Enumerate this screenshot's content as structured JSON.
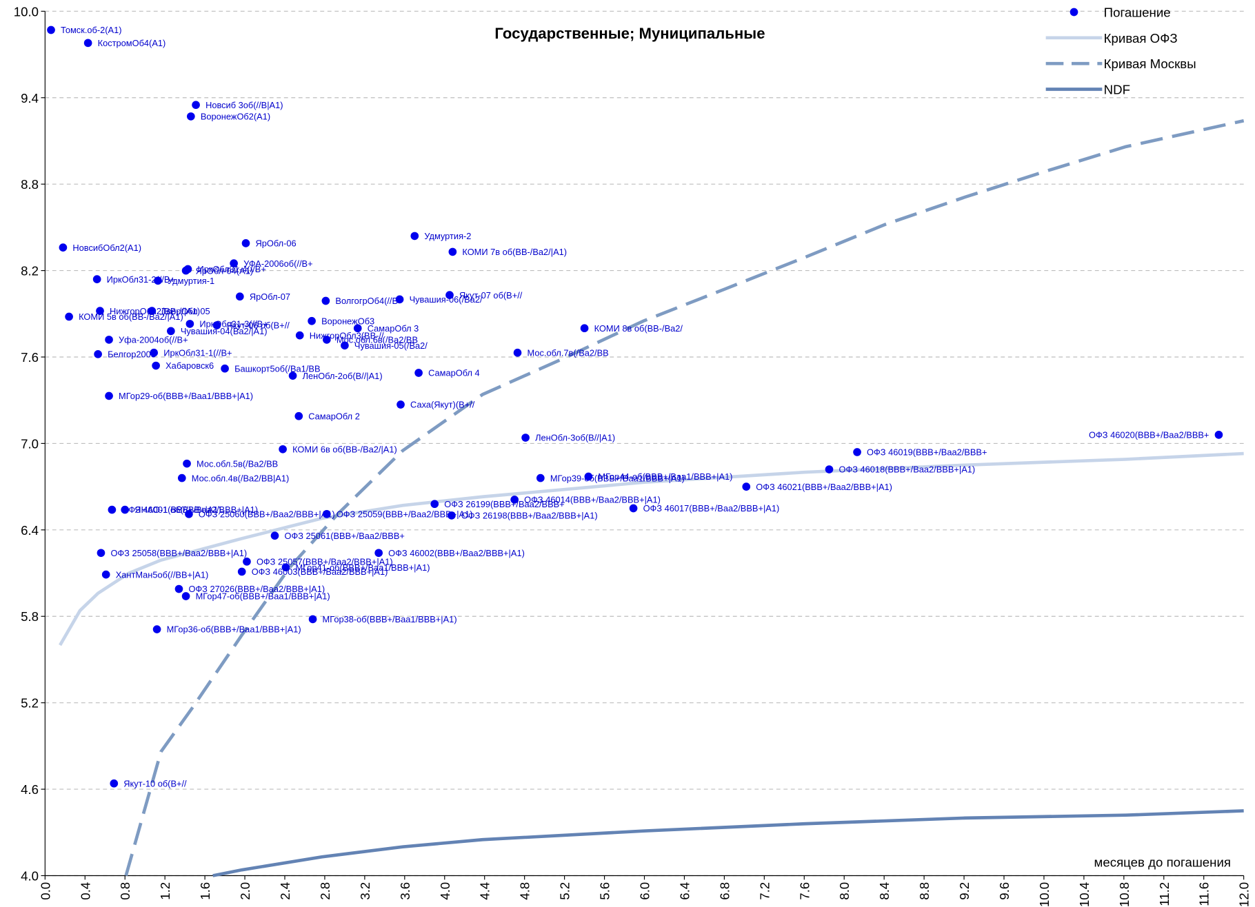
{
  "chart_data": {
    "type": "scatter",
    "title": "Государственные; Муниципальные",
    "xlabel": "месяцев до погашения",
    "xlim": [
      0,
      12
    ],
    "ylim": [
      4,
      10
    ],
    "xticks": [
      {
        "value": 0,
        "label": "0.0"
      },
      0.4,
      0.8,
      1.2,
      1.6,
      {
        "value": 2,
        "label": "2.0"
      },
      2.4,
      2.8,
      3.2,
      3.6,
      {
        "value": 4,
        "label": "4.0"
      },
      4.4,
      4.8,
      5.2,
      5.6,
      {
        "value": 6,
        "label": "6.0"
      },
      6.4,
      6.8,
      7.2,
      7.6,
      {
        "value": 8,
        "label": "8.0"
      },
      8.4,
      8.8,
      9.2,
      9.6,
      {
        "value": 10,
        "label": "10.0"
      },
      10.4,
      10.8,
      11.2,
      11.6,
      {
        "value": 12,
        "label": "12.0"
      }
    ],
    "yticks": [
      {
        "value": 4,
        "label": "4.0"
      },
      4.6,
      5.2,
      5.8,
      6.4,
      {
        "value": 7,
        "label": "7.0"
      },
      7.6,
      8.2,
      8.8,
      9.4,
      {
        "value": 10,
        "label": "10.0"
      }
    ],
    "grid": true,
    "legend": "upper right",
    "series": [
      {
        "name": "Погашение",
        "type": "scatter",
        "color": "#0000ee",
        "labels": [
          "Томск.об-2(А1)",
          "КостромОб4(А1)",
          "Новсиб 3об(//В|А1)",
          "ВоронежОб2(А1)",
          "НовсибОбл2(А1)",
          "ЯрОбл-06",
          "Удмуртия-2",
          "КОМИ 7в об(ВВ-/Ва2/|А1)",
          "УФА-2006об(//В+",
          "ИркОбл31-4(//В+",
          "ЯрОбл-04(А1)",
          "ИркОбл31-2(//В+",
          "Удмуртия-1",
          "ЯрОбл-07",
          "ВолгогрОб4(//В+",
          "Чувашия-06(/Ва2/",
          "Якут-07 об(В+//",
          "НижгорОбл2(ВВ-//|А1)",
          "ТверОбл 05",
          "КОМИ 5в об(ВВ-/Ва2/|А1)",
          "ВоронежОб3",
          "ИркОбл31-3(//В+",
          "Якут-06 об(В+//",
          "Чувашия-04(Ва2/|А1)",
          "СамарОбл 3",
          "НижгорОбл3(ВВ-//",
          "Мос.обл.6в(/Ва2/ВВ",
          "Чувашия-05(/Ва2/",
          "КОМИ 8в об(ВВ-/Ва2/",
          "Уфа-2004об(//В+",
          "Белгор2003",
          "ИркОбл31-1(//В+",
          "Мос.обл.7в(/Ва2/ВВ",
          "Хабаровск6",
          "Башкорт5об(/Ва1/ВВ",
          "СамарОбл 4",
          "ЛенОбл-2об(В//|А1)",
          "МГор29-об(ВВВ+/Ваа1/ВВВ+|А1)",
          "Саха(Якут)(В+//",
          "СамарОбл 2",
          "ОФЗ 46020(ВВВ+/Ваа2/ВВВ+",
          "ЛенОбл-3об(В//|А1)",
          "КОМИ 6в об(ВВ-/Ва2/|А1)",
          "ОФЗ 46019(ВВВ+/Ваа2/ВВВ+",
          "Мос.обл.5в(/Ва2/ВВ",
          "ОФЗ 46018(ВВВ+/Ваа2/ВВВ+|А1)",
          "МГор39-об(ВВВ+/Ваа1/ВВВ+|А1)",
          "МГор44-об(ВВВ+/Ваа1/ВВВ+|А1)",
          "Мос.обл.4в(/Ва2/ВВ|А1)",
          "ОФЗ 46021(ВВВ+/Ваа2/ВВВ+|А1)",
          "ОФЗ 46014(ВВВ+/Ваа2/ВВВ+|А1)",
          "ОФЗ 26199(ВВВ+/Ваа2/ВВВ+",
          "ОФЗ 46017(ВВВ+/Ваа2/ВВВ+|А1)",
          "ОФЗ 46001(ВВВ+/Ваа2/ВВВ+|А1)",
          "ЯНАО-1 об(//ВВ+|А1)",
          "ОФЗ 25060(ВВВ+/Ваа2/ВВВ+|А1)",
          "ОФЗ 25059(ВВВ+/Ваа2/ВВВ+|А1)",
          "ОФЗ 26198(ВВВ+/Ваа2/ВВВ+|А1)",
          "ОФЗ 25061(ВВВ+/Ваа2/ВВВ+",
          "ОФЗ 25058(ВВВ+/Ваа2/ВВВ+|А1)",
          "ОФЗ 46002(ВВВ+/Ваа2/ВВВ+|А1)",
          "ОФЗ 25057(ВВВ+/Ваа2/ВВВ+|А1)",
          "МГор41-об(ВВВ+/Ваа1/ВВВ+|А1)",
          "ХантМан5об(//ВВ+|А1)",
          "ОФЗ 46003(ВВВ+/Ваа2/ВВВ+|А1)",
          "ОФЗ 27026(ВВВ+/Ваа2/ВВВ+|А1)",
          "МГор47-об(ВВВ+/Ваа1/ВВВ+|А1)",
          "МГор38-об(ВВВ+/Ваа1/ВВВ+|А1)",
          "МГор36-об(ВВВ+/Ваа1/ВВВ+|А1)",
          "Якут-10 об(В+//"
        ],
        "x": [
          0.06,
          0.43,
          1.51,
          1.46,
          0.18,
          2.01,
          3.7,
          4.08,
          1.89,
          1.43,
          1.41,
          0.52,
          1.13,
          1.95,
          2.81,
          3.55,
          4.05,
          0.55,
          1.07,
          0.24,
          2.67,
          1.45,
          1.72,
          1.26,
          3.13,
          2.55,
          2.82,
          3.0,
          5.4,
          0.64,
          0.53,
          1.09,
          4.73,
          1.11,
          1.8,
          3.74,
          2.48,
          0.64,
          3.56,
          2.54,
          11.75,
          4.81,
          2.38,
          8.13,
          1.42,
          7.85,
          4.96,
          5.44,
          1.37,
          7.02,
          4.7,
          3.9,
          5.89,
          0.67,
          0.8,
          1.44,
          2.82,
          4.07,
          2.3,
          0.56,
          3.34,
          2.02,
          2.41,
          0.61,
          1.97,
          1.34,
          1.41,
          2.68,
          1.12,
          0.69
        ],
        "values": [
          9.87,
          9.78,
          9.35,
          9.27,
          8.36,
          8.39,
          8.44,
          8.33,
          8.25,
          8.21,
          8.2,
          8.14,
          8.13,
          8.02,
          7.99,
          8.0,
          8.03,
          7.92,
          7.92,
          7.88,
          7.85,
          7.83,
          7.82,
          7.78,
          7.8,
          7.75,
          7.72,
          7.68,
          7.8,
          7.72,
          7.62,
          7.63,
          7.63,
          7.54,
          7.52,
          7.49,
          7.47,
          7.33,
          7.27,
          7.19,
          7.06,
          7.04,
          6.96,
          6.94,
          6.86,
          6.82,
          6.76,
          6.77,
          6.76,
          6.7,
          6.61,
          6.58,
          6.55,
          6.54,
          6.54,
          6.51,
          6.51,
          6.5,
          6.36,
          6.24,
          6.24,
          6.18,
          6.14,
          6.09,
          6.11,
          5.99,
          5.94,
          5.78,
          5.71,
          4.64
        ]
      },
      {
        "name": "Кривая ОФЗ",
        "type": "line",
        "style": "solid",
        "color": "#c6d4e9",
        "x": [
          0.15,
          0.35,
          0.53,
          0.84,
          1.16,
          1.97,
          2.77,
          3.58,
          4.38,
          5.19,
          5.99,
          7.6,
          9.21,
          10.82,
          12.0
        ],
        "values": [
          5.6,
          5.84,
          5.96,
          6.1,
          6.19,
          6.34,
          6.48,
          6.57,
          6.63,
          6.68,
          6.73,
          6.8,
          6.85,
          6.89,
          6.93
        ]
      },
      {
        "name": "Кривая Москвы",
        "type": "line",
        "style": "dashed",
        "color": "#7e9bc2",
        "x": [
          0.81,
          1.16,
          1.48,
          1.97,
          2.45,
          2.93,
          3.58,
          4.38,
          5.19,
          5.99,
          6.8,
          7.6,
          8.41,
          9.21,
          10.02,
          10.82,
          12.0
        ],
        "values": [
          4.0,
          4.86,
          5.17,
          5.67,
          6.14,
          6.51,
          6.95,
          7.34,
          7.59,
          7.85,
          8.07,
          8.29,
          8.52,
          8.71,
          8.89,
          9.06,
          9.24
        ]
      },
      {
        "name": "NDF",
        "type": "line",
        "style": "solid",
        "color": "#6383b4",
        "x": [
          1.68,
          1.97,
          2.77,
          3.58,
          4.38,
          5.99,
          7.6,
          9.21,
          10.82,
          12.0
        ],
        "values": [
          4.0,
          4.04,
          4.13,
          4.2,
          4.25,
          4.31,
          4.36,
          4.4,
          4.42,
          4.45
        ]
      }
    ]
  }
}
